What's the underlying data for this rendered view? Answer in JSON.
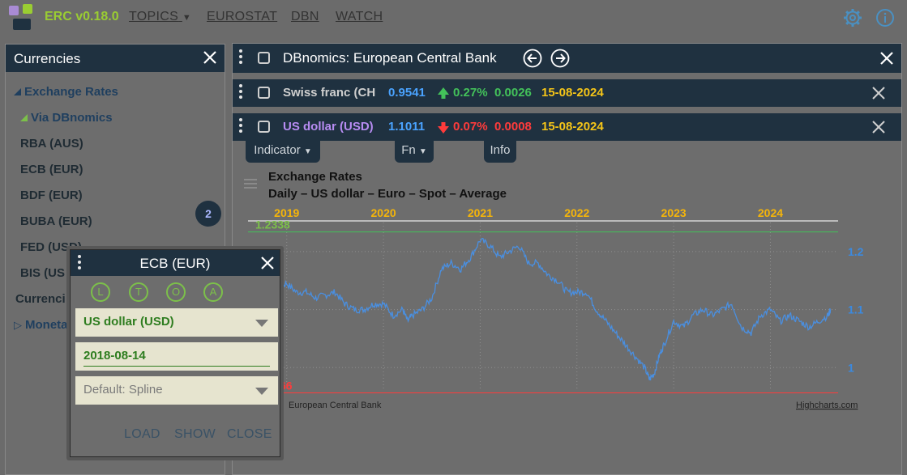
{
  "app": {
    "title": "ERC v0.18.0",
    "nav": [
      "TOPICS",
      "EUROSTAT",
      "DBN",
      "WATCH"
    ],
    "logo_colors": [
      "#a98bd4",
      "#9acd32",
      "#1f3140"
    ]
  },
  "left_panel": {
    "title": "Currencies",
    "tree": [
      {
        "label": "Exchange Rates"
      },
      {
        "label": "Via DBnomics"
      },
      {
        "label": "RBA (AUS)"
      },
      {
        "label": "ECB (EUR)"
      },
      {
        "label": "BDF (EUR)"
      },
      {
        "label": "BUBA (EUR)"
      },
      {
        "label": "FED (USD)"
      },
      {
        "label": "BIS (US"
      },
      {
        "label": "Currenci"
      },
      {
        "label": "Moneta"
      }
    ],
    "badge": "2"
  },
  "main_panel": {
    "title": "DBnomics: European Central Bank",
    "series": [
      {
        "name": "Swiss franc (CH",
        "value": "0.9541",
        "change_pct": "0.27%",
        "change_abs": "0.0026",
        "date": "15-08-2024",
        "direction": "up",
        "name_color": "#cfcfcf"
      },
      {
        "name": "US dollar (USD)",
        "value": "1.1011",
        "change_pct": "0.07%",
        "change_abs": "0.0008",
        "date": "15-08-2024",
        "direction": "down",
        "name_color": "#b78cf2"
      }
    ],
    "tabs": [
      "Indicator",
      "Fn",
      "Info"
    ]
  },
  "chart_data": {
    "type": "line",
    "title": "Exchange Rates",
    "subtitle": "Daily – US dollar – Euro – Spot – Average",
    "x_ticks": [
      "2019",
      "2020",
      "2021",
      "2022",
      "2023",
      "2024"
    ],
    "y_ticks": [
      "1.2",
      "1.1",
      "1"
    ],
    "max_label": "1.2338",
    "min_label_visible": "66",
    "ylim": [
      0.96,
      1.25
    ],
    "xlim": [
      2018.6,
      2024.7
    ],
    "credits_source": "European Central Bank",
    "credits_link": "Highcharts.com",
    "series": [
      {
        "x": [
          2018.62,
          2018.7,
          2018.8,
          2018.9,
          2019.0,
          2019.1,
          2019.2,
          2019.3,
          2019.4,
          2019.5,
          2019.6,
          2019.7,
          2019.8,
          2019.9,
          2020.0,
          2020.1,
          2020.2,
          2020.25,
          2020.3,
          2020.4,
          2020.5,
          2020.6,
          2020.7,
          2020.8,
          2020.9,
          2021.0,
          2021.1,
          2021.2,
          2021.3,
          2021.4,
          2021.5,
          2021.6,
          2021.7,
          2021.8,
          2021.9,
          2022.0,
          2022.1,
          2022.2,
          2022.3,
          2022.4,
          2022.5,
          2022.6,
          2022.7,
          2022.75,
          2022.8,
          2022.85,
          2022.9,
          2023.0,
          2023.1,
          2023.2,
          2023.3,
          2023.4,
          2023.5,
          2023.6,
          2023.7,
          2023.8,
          2023.9,
          2024.0,
          2024.1,
          2024.2,
          2024.3,
          2024.4,
          2024.5,
          2024.6,
          2024.62
        ],
        "y": [
          1.16,
          1.16,
          1.14,
          1.14,
          1.145,
          1.13,
          1.13,
          1.12,
          1.125,
          1.13,
          1.11,
          1.1,
          1.1,
          1.11,
          1.11,
          1.09,
          1.1,
          1.08,
          1.09,
          1.1,
          1.12,
          1.17,
          1.18,
          1.17,
          1.19,
          1.22,
          1.21,
          1.19,
          1.2,
          1.21,
          1.18,
          1.18,
          1.16,
          1.15,
          1.13,
          1.13,
          1.13,
          1.1,
          1.08,
          1.06,
          1.04,
          1.02,
          1.0,
          0.98,
          0.99,
          1.02,
          1.04,
          1.08,
          1.07,
          1.09,
          1.1,
          1.09,
          1.1,
          1.11,
          1.07,
          1.06,
          1.09,
          1.1,
          1.08,
          1.09,
          1.08,
          1.07,
          1.08,
          1.09,
          1.1
        ]
      }
    ]
  },
  "popup": {
    "title": "ECB (EUR)",
    "circles": [
      "L",
      "T",
      "O",
      "A"
    ],
    "currency": "US dollar (USD)",
    "date": "2018-08-14",
    "mode": "Default: Spline",
    "buttons": [
      "LOAD",
      "SHOW",
      "CLOSE"
    ]
  }
}
